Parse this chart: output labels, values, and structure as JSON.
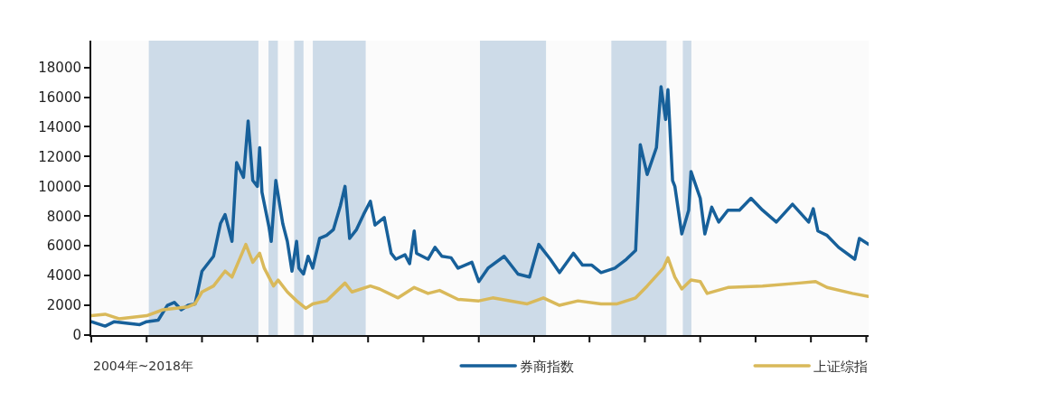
{
  "chart_data": {
    "type": "line",
    "annotations": [
      "2004年~2018年"
    ],
    "categories": [
      null,
      null,
      null,
      null,
      null,
      null,
      null,
      null,
      null,
      null,
      null,
      null,
      null,
      null,
      null,
      null,
      null,
      null,
      null,
      null,
      null,
      null,
      null,
      null,
      null,
      null,
      null,
      null,
      null,
      null,
      null,
      null,
      null,
      null,
      null,
      null,
      null,
      null,
      null,
      null,
      null,
      null,
      null,
      null,
      null,
      null,
      null,
      null,
      null,
      null,
      null,
      null,
      null,
      null,
      null,
      null,
      null,
      null,
      null,
      null,
      null,
      null,
      null,
      null,
      null,
      null,
      null,
      null,
      null,
      null,
      null,
      null,
      null,
      null,
      null,
      null,
      null,
      null,
      null,
      null,
      null,
      null,
      null,
      null,
      null,
      null,
      null,
      null,
      null,
      null,
      null,
      null,
      null,
      null,
      null,
      null,
      null,
      null,
      null,
      null,
      null,
      null,
      null,
      null,
      null,
      null,
      null,
      null,
      null,
      null,
      null,
      null,
      null,
      null,
      null,
      null,
      null,
      null,
      null,
      null,
      null,
      null,
      null,
      null,
      null,
      null,
      null,
      null,
      null,
      null,
      null,
      null,
      null,
      null,
      null,
      null,
      null,
      null,
      null,
      null,
      null,
      null,
      null,
      null,
      null,
      null,
      null,
      null,
      null,
      null,
      null,
      null,
      null,
      null,
      null,
      null,
      null,
      null,
      null,
      null,
      null,
      null,
      null,
      null,
      null,
      null,
      null,
      null,
      null,
      null,
      null,
      null,
      null,
      null,
      null,
      null,
      null,
      null,
      null,
      null,
      null,
      null,
      null,
      null,
      null,
      null,
      null,
      null,
      null,
      null,
      null,
      null,
      null,
      null,
      null,
      null,
      null,
      null,
      null,
      null,
      null,
      null,
      null,
      null,
      null,
      null,
      null,
      null,
      null,
      null,
      null,
      null,
      null,
      null,
      null,
      null,
      null,
      null,
      null,
      null,
      null,
      null,
      null,
      null,
      null,
      null,
      null,
      null,
      null,
      null,
      null,
      null,
      null,
      null,
      null,
      null,
      null,
      null,
      null,
      null,
      null,
      null,
      null,
      null,
      null,
      null,
      null,
      null,
      null,
      null,
      null,
      null,
      null,
      null,
      null,
      null,
      null,
      null,
      null,
      null,
      null,
      null,
      null,
      null,
      null,
      null,
      null,
      null,
      null,
      null,
      null,
      null,
      null,
      null,
      null,
      null,
      null,
      null,
      null,
      null,
      null,
      null,
      null,
      null,
      null,
      null,
      null,
      null,
      null,
      null,
      null,
      null,
      null,
      null,
      null,
      null,
      null,
      null,
      null,
      null,
      null,
      null,
      null,
      null,
      null,
      null,
      null,
      null,
      null,
      null,
      null,
      null,
      null,
      null,
      null,
      null,
      null,
      null,
      null,
      null,
      null,
      null,
      null,
      null,
      null,
      null,
      null,
      null,
      null,
      null,
      null,
      null,
      null,
      null,
      null,
      null,
      null,
      null
    ],
    "series": [
      {
        "name": "券商指数",
        "color": "#17609a",
        "values": [
          900,
          null,
          null,
          null,
          null,
          null,
          600,
          null,
          null,
          null,
          900,
          null,
          null,
          null,
          null,
          800,
          null,
          null,
          null,
          null,
          null,
          700,
          null,
          null,
          900,
          null,
          null,
          null,
          null,
          1000,
          null,
          null,
          null,
          2000,
          null,
          null,
          2200,
          null,
          null,
          1700,
          null,
          null,
          2000,
          null,
          null,
          2100,
          null,
          null,
          4300,
          null,
          null,
          null,
          null,
          5300,
          null,
          null,
          7500,
          null,
          8100,
          null,
          null,
          6300,
          null,
          11600,
          null,
          null,
          10600,
          null,
          14400,
          null,
          10400,
          null,
          10000,
          12600,
          9600,
          null,
          null,
          7300,
          6300,
          null,
          10400,
          null,
          null,
          7500,
          null,
          6300,
          null,
          4300,
          null,
          6300,
          4500,
          null,
          4100,
          null,
          5300,
          null,
          4500,
          null,
          null,
          6500,
          null,
          null,
          6700,
          null,
          null,
          7100,
          null,
          null,
          8700,
          null,
          10000,
          null,
          6500,
          null,
          null,
          7100,
          null,
          null,
          8100,
          null,
          null,
          9000,
          null,
          7400,
          null,
          null,
          null,
          7900,
          null,
          null,
          5500,
          null,
          5100,
          null,
          null,
          null,
          5400,
          null,
          4800,
          null,
          7000,
          5500,
          null,
          null,
          null,
          null,
          5100,
          null,
          null,
          5900,
          null,
          null,
          5300,
          null,
          null,
          null,
          5200,
          null,
          null,
          4500,
          null,
          null,
          null,
          null,
          null,
          4900,
          null,
          null,
          3600,
          null,
          null,
          null,
          4500,
          null,
          null,
          null,
          null,
          null,
          null,
          5300,
          null,
          null,
          null,
          null,
          null,
          4100,
          null,
          null,
          null,
          null,
          3900,
          null,
          null,
          null,
          6100,
          null,
          null,
          null,
          null,
          5100,
          null,
          null,
          null,
          4200,
          null,
          null,
          null,
          null,
          null,
          5500,
          null,
          null,
          null,
          4700,
          null,
          null,
          null,
          4700,
          null,
          null,
          null,
          4200,
          null,
          null,
          null,
          null,
          null,
          4500,
          null,
          null,
          null,
          null,
          5100,
          null,
          null,
          null,
          5700,
          null,
          12800,
          null,
          null,
          10800,
          null,
          null,
          null,
          12600,
          null,
          16700,
          null,
          14500,
          16500,
          null,
          10400,
          10000,
          null,
          null,
          6800,
          null,
          null,
          8400,
          11000,
          null,
          null,
          null,
          9200,
          null,
          6800,
          null,
          null,
          8600,
          null,
          null,
          7600,
          null,
          null,
          null,
          8400,
          null,
          null,
          null,
          null,
          8400,
          null,
          null,
          null,
          null,
          9200,
          null,
          null,
          null,
          null,
          8400,
          null,
          null,
          null,
          null,
          null,
          7600,
          null,
          null,
          null,
          null,
          null,
          null,
          8800,
          null,
          null,
          null,
          null,
          null,
          null,
          7600,
          null,
          8500,
          null,
          7000,
          null,
          null,
          null,
          6700,
          null,
          null,
          null,
          null,
          5900,
          null,
          null,
          null,
          null,
          null,
          null,
          5100,
          null,
          6500,
          null,
          null,
          null,
          6100
        ]
      },
      {
        "name": "上证综指",
        "color": "#d9b95a",
        "values": [
          1300,
          null,
          null,
          null,
          null,
          null,
          1400,
          null,
          null,
          null,
          null,
          null,
          1100,
          null,
          null,
          null,
          null,
          null,
          1200,
          null,
          null,
          null,
          null,
          null,
          1300,
          null,
          null,
          null,
          null,
          null,
          null,
          1700,
          null,
          null,
          null,
          null,
          null,
          null,
          null,
          null,
          null,
          null,
          1900,
          null,
          null,
          2100,
          null,
          null,
          2900,
          null,
          null,
          null,
          null,
          3300,
          null,
          null,
          null,
          null,
          4300,
          null,
          null,
          3900,
          null,
          null,
          null,
          null,
          null,
          6100,
          null,
          null,
          4900,
          null,
          null,
          5500,
          null,
          4500,
          null,
          null,
          null,
          3300,
          null,
          3700,
          null,
          null,
          null,
          2900,
          null,
          null,
          null,
          2300,
          null,
          null,
          null,
          1800,
          null,
          null,
          2100,
          null,
          null,
          null,
          null,
          null,
          2300,
          null,
          null,
          null,
          null,
          null,
          null,
          null,
          3500,
          null,
          null,
          2900,
          null,
          null,
          null,
          null,
          null,
          null,
          null,
          3300,
          null,
          null,
          null,
          3100,
          null,
          null,
          null,
          null,
          null,
          null,
          null,
          2500,
          null,
          null,
          null,
          null,
          null,
          null,
          3200,
          null,
          null,
          null,
          null,
          null,
          2800,
          null,
          null,
          null,
          null,
          3000,
          null,
          null,
          null,
          null,
          null,
          null,
          null,
          2400,
          null,
          null,
          null,
          null,
          null,
          null,
          null,
          null,
          2300,
          null,
          null,
          null,
          null,
          null,
          2500,
          null,
          null,
          null,
          null,
          null,
          null,
          null,
          null,
          null,
          null,
          null,
          null,
          null,
          null,
          2100,
          null,
          null,
          null,
          null,
          null,
          null,
          2500,
          null,
          null,
          null,
          null,
          null,
          null,
          2000,
          null,
          null,
          null,
          null,
          null,
          null,
          null,
          2300,
          null,
          null,
          null,
          null,
          null,
          null,
          null,
          null,
          null,
          2100,
          null,
          null,
          null,
          null,
          null,
          null,
          2100,
          null,
          null,
          null,
          null,
          null,
          null,
          null,
          2500,
          null,
          null,
          null,
          null,
          3300,
          null,
          null,
          null,
          null,
          null,
          null,
          4500,
          null,
          5200,
          null,
          null,
          3900,
          null,
          null,
          3100,
          null,
          null,
          null,
          3700,
          null,
          null,
          null,
          3600,
          null,
          null,
          2800,
          null,
          null,
          null,
          null,
          null,
          null,
          null,
          null,
          3200,
          null,
          null,
          null,
          null,
          null,
          null,
          null,
          null,
          null,
          null,
          null,
          null,
          null,
          null,
          3300,
          null,
          null,
          null,
          null,
          null,
          null,
          null,
          null,
          null,
          null,
          null,
          null,
          null,
          null,
          null,
          3500,
          null,
          null,
          null,
          null,
          null,
          null,
          3600,
          null,
          null,
          null,
          null,
          3200,
          null,
          null,
          null,
          null,
          null,
          null,
          null,
          null,
          null,
          null,
          2800,
          null,
          null,
          null,
          null,
          null,
          null,
          2600
        ]
      }
    ],
    "ylim": [
      0,
      19800
    ],
    "yticks": [
      0,
      2000,
      4000,
      6000,
      8000,
      10000,
      12000,
      14000,
      16000,
      18000
    ],
    "grid": false,
    "legend": "bottom"
  }
}
